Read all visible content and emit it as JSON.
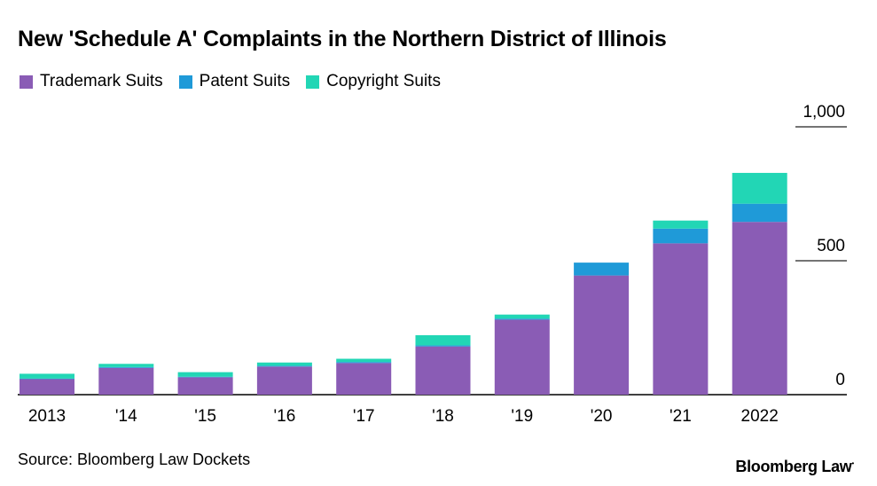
{
  "chart_data": {
    "type": "bar",
    "stacked": true,
    "title": "New 'Schedule A' Complaints in the Northern District of Illinois",
    "categories": [
      "2013",
      "'14",
      "'15",
      "'16",
      "'17",
      "'18",
      "'19",
      "'20",
      "'21",
      "2022"
    ],
    "series": [
      {
        "name": "Trademark Suits",
        "color": "#8a5cb5",
        "values": [
          58,
          100,
          65,
          105,
          118,
          180,
          280,
          445,
          565,
          645
        ]
      },
      {
        "name": "Patent Suits",
        "color": "#1f9ad8",
        "values": [
          2,
          3,
          2,
          3,
          4,
          4,
          4,
          48,
          55,
          68
        ]
      },
      {
        "name": "Copyright Suits",
        "color": "#22d6b5",
        "values": [
          18,
          12,
          17,
          12,
          12,
          38,
          15,
          0,
          30,
          115
        ]
      }
    ],
    "y_ticks": [
      {
        "value": 0,
        "label": "0"
      },
      {
        "value": 500,
        "label": "500"
      },
      {
        "value": 1000,
        "label": "1,000"
      }
    ],
    "ylim": [
      0,
      1000
    ],
    "y_axis_side": "right",
    "legend_position": "top-left"
  },
  "source": "Source: Bloomberg Law Dockets",
  "brand": "Bloomberg Law"
}
